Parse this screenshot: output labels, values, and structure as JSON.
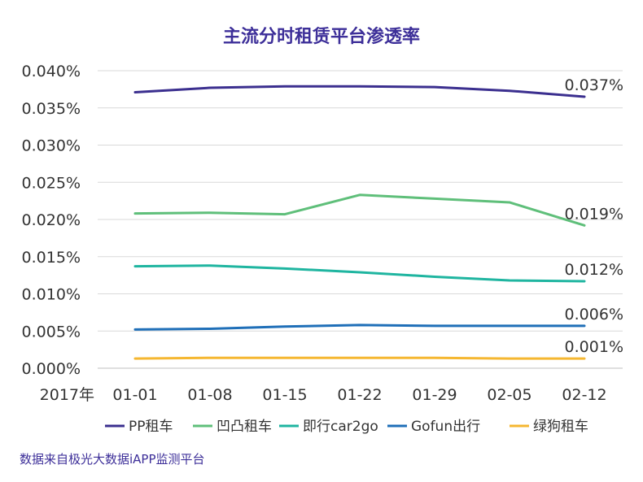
{
  "colors": {
    "title": "#3d2f99",
    "source": "#3d2f99",
    "grid": "#d9d9d9",
    "axis": "#bfbfbf"
  },
  "chart_data": {
    "type": "line",
    "title": "主流分时租赁平台渗透率",
    "x_prefix": "2017年",
    "categories": [
      "01-01",
      "01-08",
      "01-15",
      "01-22",
      "01-29",
      "02-05",
      "02-12"
    ],
    "ylim": [
      0,
      0.04
    ],
    "yticks": [
      "0.000%",
      "0.005%",
      "0.010%",
      "0.015%",
      "0.020%",
      "0.025%",
      "0.030%",
      "0.035%",
      "0.040%"
    ],
    "grid": true,
    "legend_position": "bottom",
    "series": [
      {
        "name": "PP租车",
        "color": "#3b2f8f",
        "values": [
          0.0371,
          0.0377,
          0.0379,
          0.0379,
          0.0378,
          0.0373,
          0.0365
        ],
        "end_label": "0.037%"
      },
      {
        "name": "凹凸租车",
        "color": "#5fbf7a",
        "values": [
          0.0208,
          0.0209,
          0.0207,
          0.0233,
          0.0228,
          0.0223,
          0.0192
        ],
        "end_label": "0.019%"
      },
      {
        "name": "即行car2go",
        "color": "#1fb5a0",
        "values": [
          0.0137,
          0.0138,
          0.0134,
          0.0129,
          0.0123,
          0.0118,
          0.0117
        ],
        "end_label": "0.012%"
      },
      {
        "name": "Gofun出行",
        "color": "#1f6fb8",
        "values": [
          0.0052,
          0.0053,
          0.0056,
          0.0058,
          0.0057,
          0.0057,
          0.0057
        ],
        "end_label": "0.006%"
      },
      {
        "name": "绿狗租车",
        "color": "#f5b731",
        "values": [
          0.0013,
          0.0014,
          0.0014,
          0.0014,
          0.0014,
          0.0013,
          0.0013
        ],
        "end_label": "0.001%"
      }
    ],
    "source": "数据来自极光大数据iAPP监测平台"
  }
}
